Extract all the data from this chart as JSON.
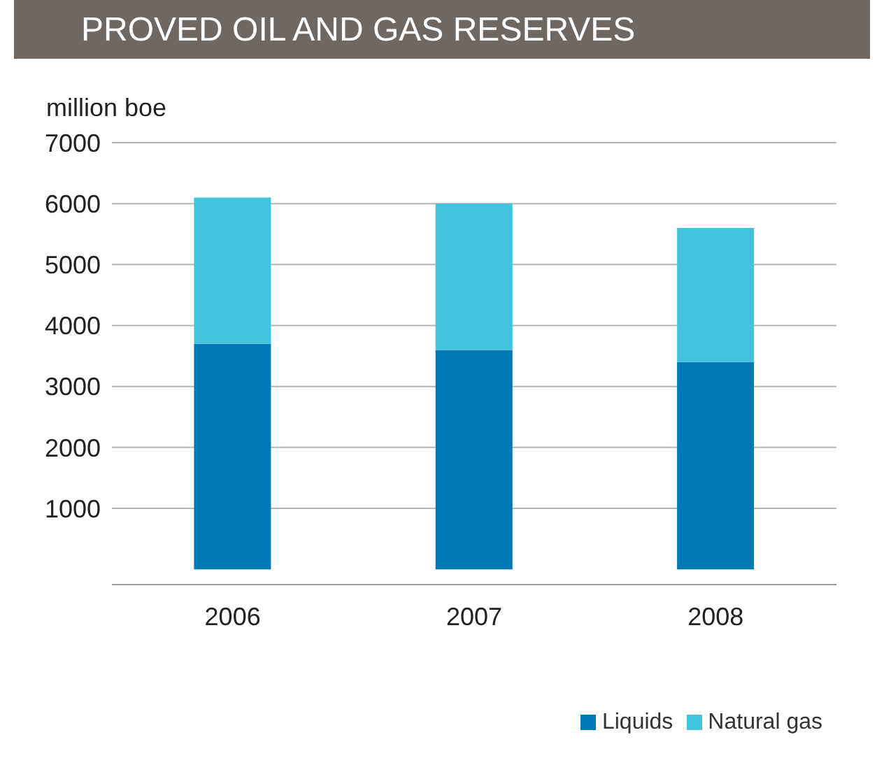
{
  "chart_data": {
    "type": "bar",
    "title": "PROVED OIL AND GAS RESERVES",
    "ylabel": "million boe",
    "categories": [
      "2006",
      "2007",
      "2008"
    ],
    "series": [
      {
        "name": "Liquids",
        "color": "#0079b5",
        "values": [
          3700,
          3600,
          3400
        ]
      },
      {
        "name": "Natural gas",
        "color": "#41c3de",
        "values": [
          2400,
          2400,
          2200
        ]
      }
    ],
    "stacked": true,
    "ylim": [
      -250,
      7000
    ],
    "yticks": [
      1000,
      2000,
      3000,
      4000,
      5000,
      6000,
      7000
    ],
    "grid": "y",
    "legend": "bottom right"
  }
}
